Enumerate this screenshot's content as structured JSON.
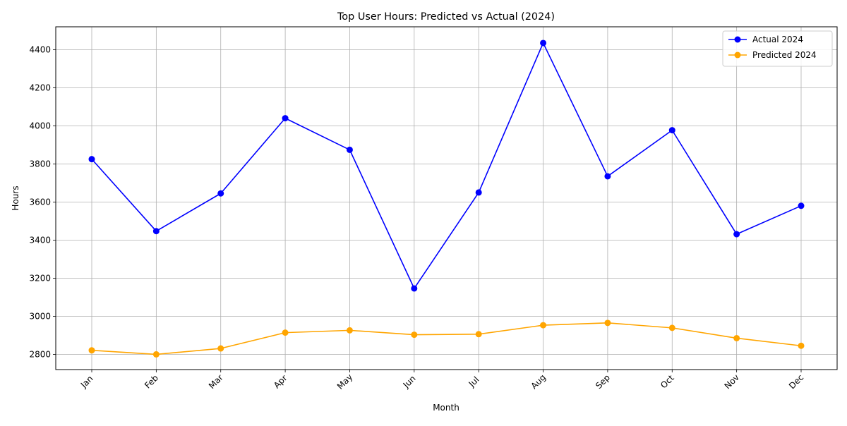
{
  "chart_data": {
    "type": "line",
    "title": "Top User Hours: Predicted vs Actual (2024)",
    "xlabel": "Month",
    "ylabel": "Hours",
    "categories": [
      "Jan",
      "Feb",
      "Mar",
      "Apr",
      "May",
      "Jun",
      "Jul",
      "Aug",
      "Sep",
      "Oct",
      "Nov",
      "Dec"
    ],
    "ylim": [
      2720,
      4520
    ],
    "yticks": [
      2800,
      3000,
      3200,
      3400,
      3600,
      3800,
      4000,
      4200,
      4400
    ],
    "grid": true,
    "legend_position": "top-right",
    "series": [
      {
        "name": "Actual 2024",
        "color": "#0000ff",
        "marker": "circle",
        "values": [
          3825,
          3447,
          3645,
          4040,
          3874,
          3146,
          3650,
          4435,
          3735,
          3977,
          3431,
          3580
        ]
      },
      {
        "name": "Predicted 2024",
        "color": "#ffa500",
        "marker": "circle",
        "values": [
          2821,
          2800,
          2831,
          2914,
          2926,
          2903,
          2906,
          2953,
          2965,
          2939,
          2885,
          2845
        ]
      }
    ]
  }
}
